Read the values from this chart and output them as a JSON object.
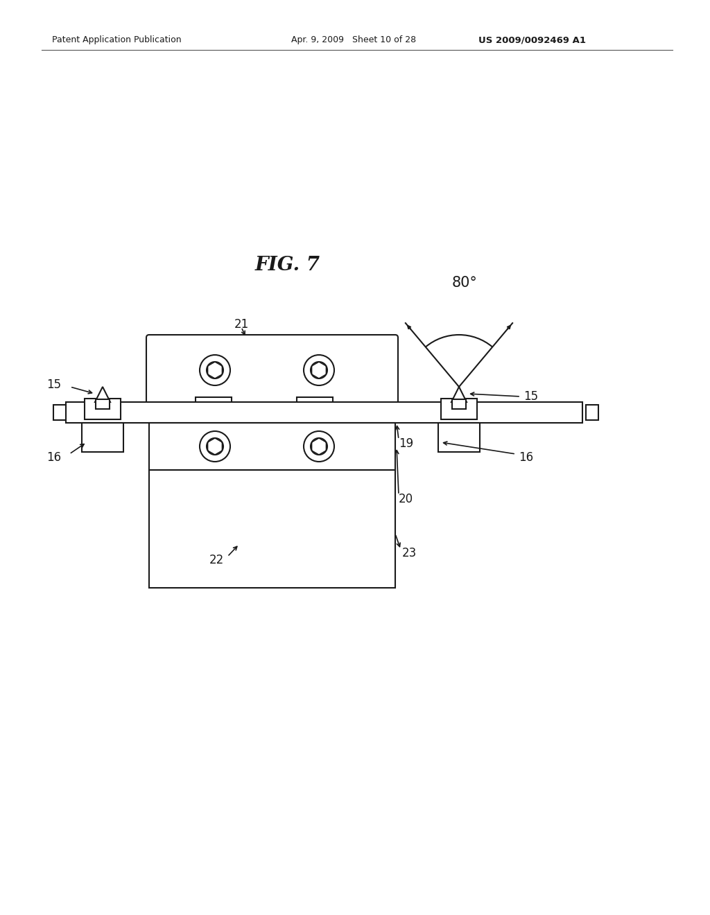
{
  "bg_color": "#ffffff",
  "header_left": "Patent Application Publication",
  "header_mid": "Apr. 9, 2009   Sheet 10 of 28",
  "header_right": "US 2009/0092469 A1",
  "fig_label": "FIG. 7",
  "ec": "#1a1a1a",
  "lw": 1.5,
  "label_fs": 12,
  "fig_label_fs": 20
}
